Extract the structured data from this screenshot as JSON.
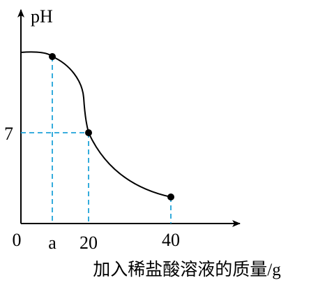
{
  "chart_data": {
    "type": "line",
    "ylabel": "pH",
    "xlabel": "加入稀盐酸溶液的质量/g",
    "origin_label": "0",
    "x_tick_labels": [
      "a",
      "20",
      "40"
    ],
    "y_tick_labels": [
      "7"
    ],
    "marked_points": [
      {
        "x": "a",
        "y": ""
      },
      {
        "x": 20,
        "y": 7
      },
      {
        "x": 40,
        "y": ""
      }
    ],
    "curve": "starts high at x=0, stays near-flat through point a, drops steeply to pH 7 at x=20, then decreases gradually to x=40",
    "colors": {
      "curve": "#000000",
      "points": "#000000",
      "guides": "#1fa3d9",
      "axes": "#000000"
    }
  }
}
